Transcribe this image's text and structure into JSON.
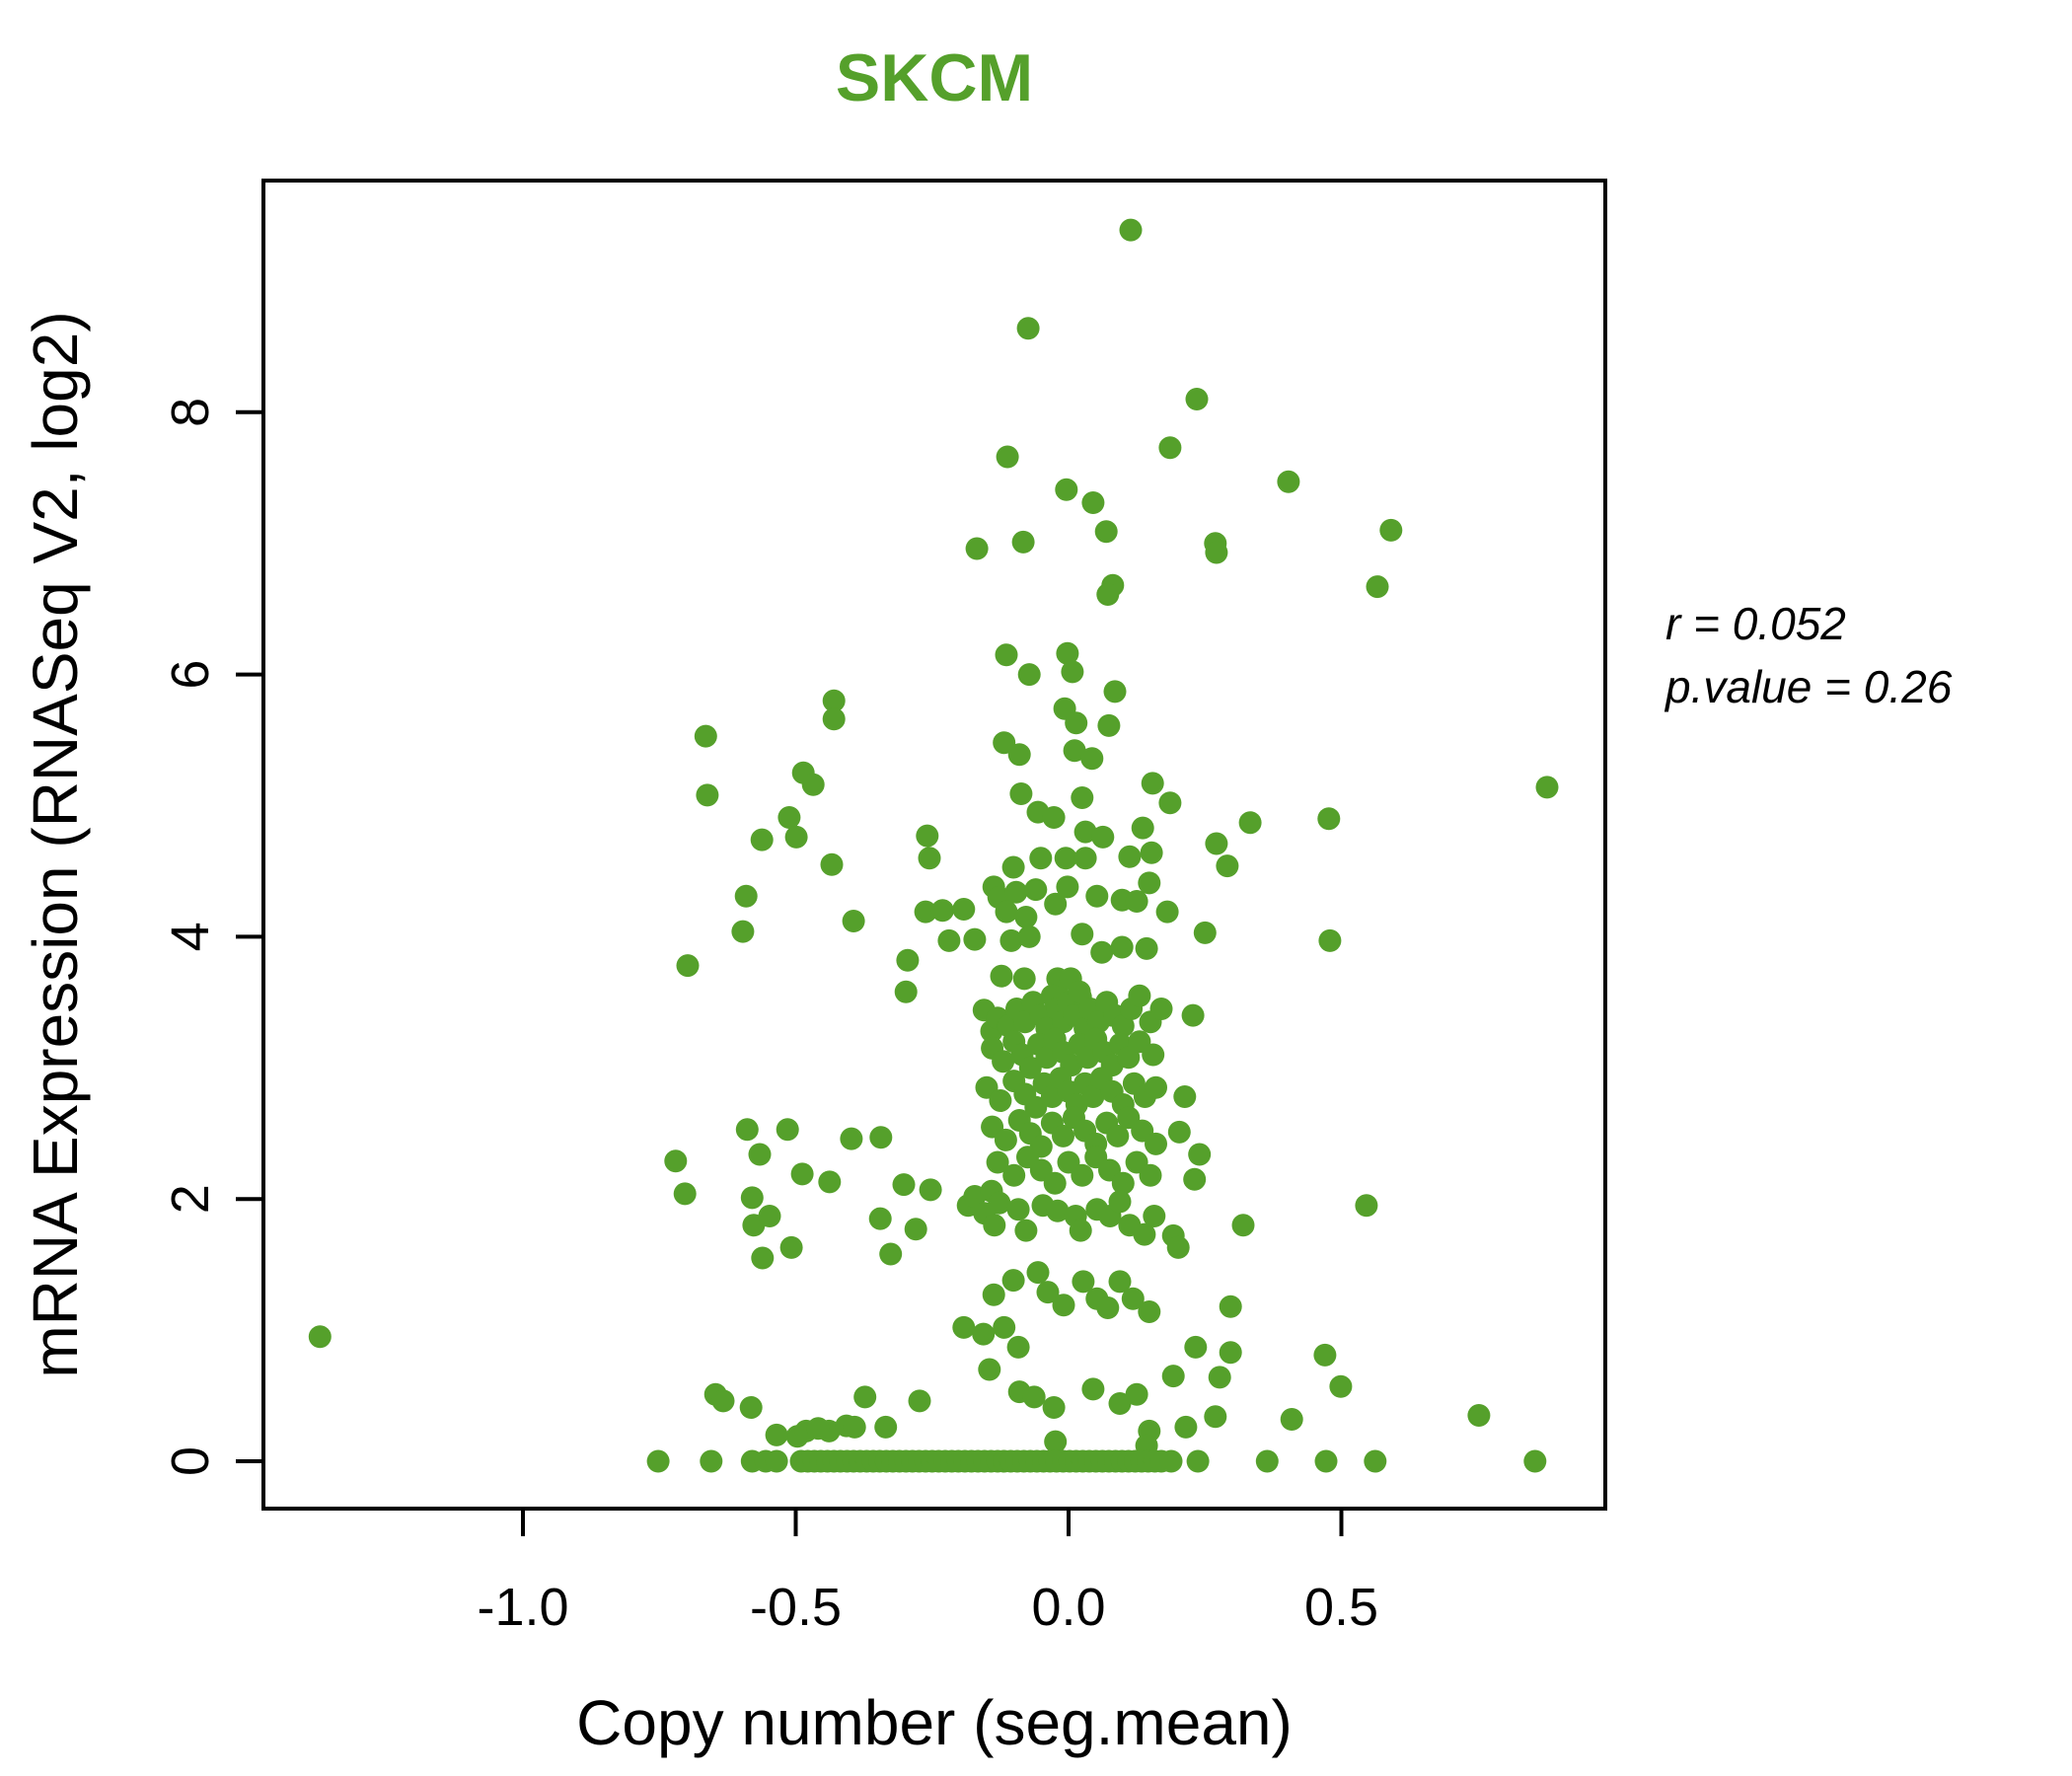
{
  "title": "SKCM",
  "annotation": {
    "line1": "r = 0.052",
    "line2": "p.value = 0.26"
  },
  "colors": {
    "title_green": "#55a02b",
    "point_green": "#55a02b",
    "axis_black": "#000000"
  },
  "chart_data": {
    "type": "scatter",
    "title": "SKCM",
    "xlabel": "Copy number (seg.mean)",
    "ylabel": "mRNA Expression (RNASeq V2, log2)",
    "x_ticks": [
      -1.0,
      -0.5,
      0.0,
      0.5
    ],
    "x_tick_labels": [
      "-1.0",
      "-0.5",
      "0.0",
      "0.5"
    ],
    "y_ticks": [
      0,
      2,
      4,
      6,
      8
    ],
    "y_tick_labels": [
      "0",
      "2",
      "4",
      "6",
      "8"
    ],
    "xlim": [
      -1.47,
      0.99
    ],
    "ylim": [
      -0.36,
      9.79
    ],
    "grid": false,
    "legend": null,
    "stats": {
      "r": 0.052,
      "p_value": 0.26
    },
    "point_color": "#55a02b",
    "points": [
      [
        0.114,
        9.39
      ],
      [
        -0.074,
        8.64
      ],
      [
        0.235,
        8.1
      ],
      [
        -0.112,
        7.66
      ],
      [
        0.186,
        7.73
      ],
      [
        -0.004,
        7.41
      ],
      [
        0.403,
        7.47
      ],
      [
        0.045,
        7.31
      ],
      [
        0.069,
        7.09
      ],
      [
        -0.168,
        6.96
      ],
      [
        -0.083,
        7.01
      ],
      [
        0.081,
        6.68
      ],
      [
        0.072,
        6.61
      ],
      [
        0.591,
        7.1
      ],
      [
        0.269,
        7.0
      ],
      [
        0.271,
        6.93
      ],
      [
        0.566,
        6.67
      ],
      [
        -0.114,
        6.15
      ],
      [
        -0.002,
        6.16
      ],
      [
        -0.072,
        6.0
      ],
      [
        0.007,
        6.02
      ],
      [
        0.085,
        5.87
      ],
      [
        -0.43,
        5.8
      ],
      [
        -0.43,
        5.66
      ],
      [
        -0.007,
        5.74
      ],
      [
        0.014,
        5.63
      ],
      [
        0.074,
        5.61
      ],
      [
        -0.118,
        5.48
      ],
      [
        -0.09,
        5.39
      ],
      [
        0.011,
        5.42
      ],
      [
        0.043,
        5.36
      ],
      [
        -0.486,
        5.25
      ],
      [
        -0.468,
        5.16
      ],
      [
        0.154,
        5.17
      ],
      [
        -0.087,
        5.09
      ],
      [
        -0.056,
        4.95
      ],
      [
        0.025,
        5.06
      ],
      [
        -0.665,
        5.53
      ],
      [
        -0.662,
        5.08
      ],
      [
        0.186,
        5.02
      ],
      [
        0.877,
        5.14
      ],
      [
        -0.027,
        4.91
      ],
      [
        0.031,
        4.8
      ],
      [
        0.063,
        4.76
      ],
      [
        0.136,
        4.83
      ],
      [
        0.152,
        4.64
      ],
      [
        -0.512,
        4.91
      ],
      [
        -0.562,
        4.74
      ],
      [
        -0.499,
        4.76
      ],
      [
        -0.434,
        4.55
      ],
      [
        -0.259,
        4.77
      ],
      [
        -0.255,
        4.6
      ],
      [
        -0.101,
        4.53
      ],
      [
        -0.051,
        4.6
      ],
      [
        -0.005,
        4.6
      ],
      [
        0.031,
        4.6
      ],
      [
        0.112,
        4.61
      ],
      [
        0.333,
        4.87
      ],
      [
        0.477,
        4.9
      ],
      [
        0.271,
        4.71
      ],
      [
        0.291,
        4.54
      ],
      [
        0.148,
        4.41
      ],
      [
        -0.591,
        4.31
      ],
      [
        -0.597,
        4.04
      ],
      [
        -0.137,
        4.38
      ],
      [
        -0.128,
        4.3
      ],
      [
        -0.096,
        4.34
      ],
      [
        -0.06,
        4.36
      ],
      [
        -0.024,
        4.25
      ],
      [
        -0.002,
        4.38
      ],
      [
        -0.114,
        4.19
      ],
      [
        -0.078,
        4.15
      ],
      [
        0.052,
        4.31
      ],
      [
        0.098,
        4.28
      ],
      [
        0.125,
        4.27
      ],
      [
        -0.262,
        4.19
      ],
      [
        -0.231,
        4.2
      ],
      [
        -0.192,
        4.21
      ],
      [
        -0.394,
        4.12
      ],
      [
        -0.219,
        3.97
      ],
      [
        -0.172,
        3.98
      ],
      [
        -0.105,
        3.97
      ],
      [
        -0.072,
        4.0
      ],
      [
        0.025,
        4.02
      ],
      [
        0.061,
        3.88
      ],
      [
        0.098,
        3.92
      ],
      [
        0.143,
        3.91
      ],
      [
        -0.295,
        3.82
      ],
      [
        0.181,
        4.19
      ],
      [
        0.25,
        4.03
      ],
      [
        0.479,
        3.97
      ],
      [
        -0.698,
        3.78
      ],
      [
        -0.298,
        3.58
      ],
      [
        -0.081,
        3.68
      ],
      [
        -0.02,
        3.68
      ],
      [
        0.004,
        3.68
      ],
      [
        0.022,
        3.54
      ],
      [
        -0.014,
        3.53
      ],
      [
        -0.069,
        3.42
      ],
      [
        -0.029,
        3.42
      ],
      [
        0.04,
        3.4
      ],
      [
        0.08,
        3.4
      ],
      [
        -0.141,
        3.28
      ],
      [
        -0.123,
        3.7
      ],
      [
        0.228,
        3.4
      ],
      [
        -0.155,
        3.44
      ],
      [
        -0.13,
        3.38
      ],
      [
        -0.11,
        3.32
      ],
      [
        -0.095,
        3.45
      ],
      [
        -0.08,
        3.35
      ],
      [
        -0.065,
        3.5
      ],
      [
        -0.05,
        3.4
      ],
      [
        -0.04,
        3.3
      ],
      [
        -0.03,
        3.55
      ],
      [
        -0.02,
        3.45
      ],
      [
        -0.01,
        3.35
      ],
      [
        0.0,
        3.5
      ],
      [
        0.01,
        3.4
      ],
      [
        0.02,
        3.58
      ],
      [
        0.03,
        3.3
      ],
      [
        0.04,
        3.45
      ],
      [
        0.055,
        3.35
      ],
      [
        0.07,
        3.5
      ],
      [
        0.085,
        3.4
      ],
      [
        0.1,
        3.32
      ],
      [
        0.115,
        3.45
      ],
      [
        0.13,
        3.55
      ],
      [
        0.15,
        3.35
      ],
      [
        0.17,
        3.45
      ],
      [
        -0.14,
        3.15
      ],
      [
        -0.12,
        3.05
      ],
      [
        -0.1,
        3.2
      ],
      [
        -0.085,
        3.1
      ],
      [
        -0.07,
        3.0
      ],
      [
        -0.055,
        3.18
      ],
      [
        -0.04,
        3.08
      ],
      [
        -0.025,
        3.22
      ],
      [
        -0.01,
        3.12
      ],
      [
        0.005,
        3.02
      ],
      [
        0.02,
        3.18
      ],
      [
        0.035,
        3.08
      ],
      [
        0.05,
        3.22
      ],
      [
        0.065,
        3.12
      ],
      [
        0.08,
        3.02
      ],
      [
        0.095,
        3.18
      ],
      [
        0.11,
        3.08
      ],
      [
        0.13,
        3.2
      ],
      [
        0.155,
        3.1
      ],
      [
        -0.15,
        2.85
      ],
      [
        -0.125,
        2.75
      ],
      [
        -0.1,
        2.9
      ],
      [
        -0.08,
        2.8
      ],
      [
        -0.06,
        2.7
      ],
      [
        -0.045,
        2.88
      ],
      [
        -0.03,
        2.78
      ],
      [
        -0.015,
        2.92
      ],
      [
        0.0,
        2.82
      ],
      [
        0.015,
        2.72
      ],
      [
        0.03,
        2.88
      ],
      [
        0.045,
        2.78
      ],
      [
        0.06,
        2.92
      ],
      [
        0.08,
        2.82
      ],
      [
        0.1,
        2.72
      ],
      [
        0.12,
        2.88
      ],
      [
        0.14,
        2.78
      ],
      [
        0.16,
        2.85
      ],
      [
        -0.14,
        2.55
      ],
      [
        -0.115,
        2.45
      ],
      [
        -0.09,
        2.6
      ],
      [
        -0.07,
        2.5
      ],
      [
        -0.05,
        2.4
      ],
      [
        -0.03,
        2.58
      ],
      [
        -0.01,
        2.48
      ],
      [
        0.01,
        2.62
      ],
      [
        0.03,
        2.52
      ],
      [
        0.05,
        2.42
      ],
      [
        0.07,
        2.58
      ],
      [
        0.09,
        2.48
      ],
      [
        0.11,
        2.62
      ],
      [
        0.135,
        2.52
      ],
      [
        0.16,
        2.42
      ],
      [
        -0.13,
        2.28
      ],
      [
        -0.1,
        2.18
      ],
      [
        -0.075,
        2.32
      ],
      [
        -0.05,
        2.22
      ],
      [
        -0.025,
        2.12
      ],
      [
        0.0,
        2.28
      ],
      [
        0.025,
        2.18
      ],
      [
        0.05,
        2.32
      ],
      [
        0.075,
        2.22
      ],
      [
        0.1,
        2.12
      ],
      [
        0.125,
        2.28
      ],
      [
        0.15,
        2.18
      ],
      [
        -0.589,
        2.53
      ],
      [
        -0.515,
        2.53
      ],
      [
        -0.566,
        2.34
      ],
      [
        -0.488,
        2.19
      ],
      [
        -0.438,
        2.13
      ],
      [
        -0.398,
        2.46
      ],
      [
        -0.344,
        2.47
      ],
      [
        -0.58,
        2.01
      ],
      [
        -0.577,
        1.8
      ],
      [
        -0.548,
        1.87
      ],
      [
        -0.302,
        2.11
      ],
      [
        -0.253,
        2.07
      ],
      [
        -0.345,
        1.85
      ],
      [
        -0.28,
        1.77
      ],
      [
        -0.326,
        1.58
      ],
      [
        -0.561,
        1.55
      ],
      [
        -0.508,
        1.63
      ],
      [
        -0.72,
        2.29
      ],
      [
        -0.703,
        2.04
      ],
      [
        -0.184,
        1.95
      ],
      [
        -0.172,
        2.02
      ],
      [
        -0.141,
        2.06
      ],
      [
        -0.127,
        1.97
      ],
      [
        -0.154,
        1.89
      ],
      [
        -0.136,
        1.8
      ],
      [
        -0.092,
        1.92
      ],
      [
        -0.078,
        1.76
      ],
      [
        -0.047,
        1.95
      ],
      [
        -0.02,
        1.91
      ],
      [
        0.013,
        1.87
      ],
      [
        0.022,
        1.76
      ],
      [
        0.052,
        1.92
      ],
      [
        0.076,
        1.87
      ],
      [
        0.094,
        1.98
      ],
      [
        0.112,
        1.8
      ],
      [
        0.139,
        1.73
      ],
      [
        0.157,
        1.87
      ],
      [
        0.213,
        2.78
      ],
      [
        0.203,
        2.51
      ],
      [
        0.24,
        2.34
      ],
      [
        0.231,
        2.15
      ],
      [
        0.546,
        1.95
      ],
      [
        0.32,
        1.8
      ],
      [
        0.192,
        1.72
      ],
      [
        0.201,
        1.63
      ],
      [
        0.297,
        1.18
      ],
      [
        0.233,
        0.87
      ],
      [
        0.297,
        0.83
      ],
      [
        0.192,
        0.65
      ],
      [
        0.277,
        0.64
      ],
      [
        0.47,
        0.81
      ],
      [
        0.499,
        0.57
      ],
      [
        0.752,
        0.35
      ],
      [
        -0.192,
        1.02
      ],
      [
        -0.156,
        0.97
      ],
      [
        -0.118,
        1.02
      ],
      [
        -0.092,
        0.87
      ],
      [
        -0.137,
        1.27
      ],
      [
        -0.101,
        1.38
      ],
      [
        -0.056,
        1.44
      ],
      [
        -0.038,
        1.29
      ],
      [
        -0.009,
        1.19
      ],
      [
        0.027,
        1.37
      ],
      [
        0.052,
        1.24
      ],
      [
        0.072,
        1.17
      ],
      [
        0.094,
        1.37
      ],
      [
        0.118,
        1.24
      ],
      [
        0.148,
        1.14
      ],
      [
        -0.647,
        0.51
      ],
      [
        -0.582,
        0.41
      ],
      [
        -0.373,
        0.49
      ],
      [
        -0.273,
        0.46
      ],
      [
        -0.497,
        0.19
      ],
      [
        -0.439,
        0.23
      ],
      [
        -0.407,
        0.27
      ],
      [
        -0.335,
        0.26
      ],
      [
        -0.145,
        0.7
      ],
      [
        -0.09,
        0.53
      ],
      [
        -0.063,
        0.49
      ],
      [
        -0.027,
        0.41
      ],
      [
        0.045,
        0.55
      ],
      [
        0.125,
        0.51
      ],
      [
        0.094,
        0.44
      ],
      [
        0.148,
        0.23
      ],
      [
        -0.024,
        0.15
      ],
      [
        0.143,
        0.12
      ],
      [
        -0.535,
        0.2
      ],
      [
        -0.481,
        0.23
      ],
      [
        -0.459,
        0.25
      ],
      [
        -0.392,
        0.26
      ],
      [
        -0.633,
        0.46
      ],
      [
        0.409,
        0.32
      ],
      [
        0.215,
        0.26
      ],
      [
        0.269,
        0.34
      ],
      [
        -1.372,
        0.95
      ],
      [
        -0.752,
        0
      ],
      [
        -0.655,
        0
      ],
      [
        -0.58,
        0
      ],
      [
        -0.555,
        0
      ],
      [
        -0.535,
        0
      ],
      [
        -0.49,
        0
      ],
      [
        -0.478,
        0
      ],
      [
        -0.466,
        0
      ],
      [
        -0.454,
        0
      ],
      [
        -0.442,
        0
      ],
      [
        -0.43,
        0
      ],
      [
        -0.418,
        0
      ],
      [
        -0.406,
        0
      ],
      [
        -0.394,
        0
      ],
      [
        -0.382,
        0
      ],
      [
        -0.37,
        0
      ],
      [
        -0.358,
        0
      ],
      [
        -0.346,
        0
      ],
      [
        -0.334,
        0
      ],
      [
        -0.322,
        0
      ],
      [
        -0.31,
        0
      ],
      [
        -0.298,
        0
      ],
      [
        -0.286,
        0
      ],
      [
        -0.274,
        0
      ],
      [
        -0.262,
        0
      ],
      [
        -0.25,
        0
      ],
      [
        -0.238,
        0
      ],
      [
        -0.226,
        0
      ],
      [
        -0.214,
        0
      ],
      [
        -0.202,
        0
      ],
      [
        -0.19,
        0
      ],
      [
        -0.178,
        0
      ],
      [
        -0.166,
        0
      ],
      [
        -0.154,
        0
      ],
      [
        -0.142,
        0
      ],
      [
        -0.13,
        0
      ],
      [
        -0.118,
        0
      ],
      [
        -0.106,
        0
      ],
      [
        -0.094,
        0
      ],
      [
        -0.082,
        0
      ],
      [
        -0.07,
        0
      ],
      [
        -0.058,
        0
      ],
      [
        -0.046,
        0
      ],
      [
        -0.034,
        0
      ],
      [
        -0.022,
        0
      ],
      [
        -0.01,
        0
      ],
      [
        0.002,
        0
      ],
      [
        0.014,
        0
      ],
      [
        0.026,
        0
      ],
      [
        0.038,
        0
      ],
      [
        0.05,
        0
      ],
      [
        0.062,
        0
      ],
      [
        0.074,
        0
      ],
      [
        0.086,
        0
      ],
      [
        0.098,
        0
      ],
      [
        0.11,
        0
      ],
      [
        0.122,
        0
      ],
      [
        0.134,
        0
      ],
      [
        0.146,
        0
      ],
      [
        0.158,
        0
      ],
      [
        0.17,
        0
      ],
      [
        0.188,
        0
      ],
      [
        0.237,
        0
      ],
      [
        0.364,
        0
      ],
      [
        0.472,
        0
      ],
      [
        0.562,
        0
      ],
      [
        0.855,
        0
      ]
    ]
  }
}
